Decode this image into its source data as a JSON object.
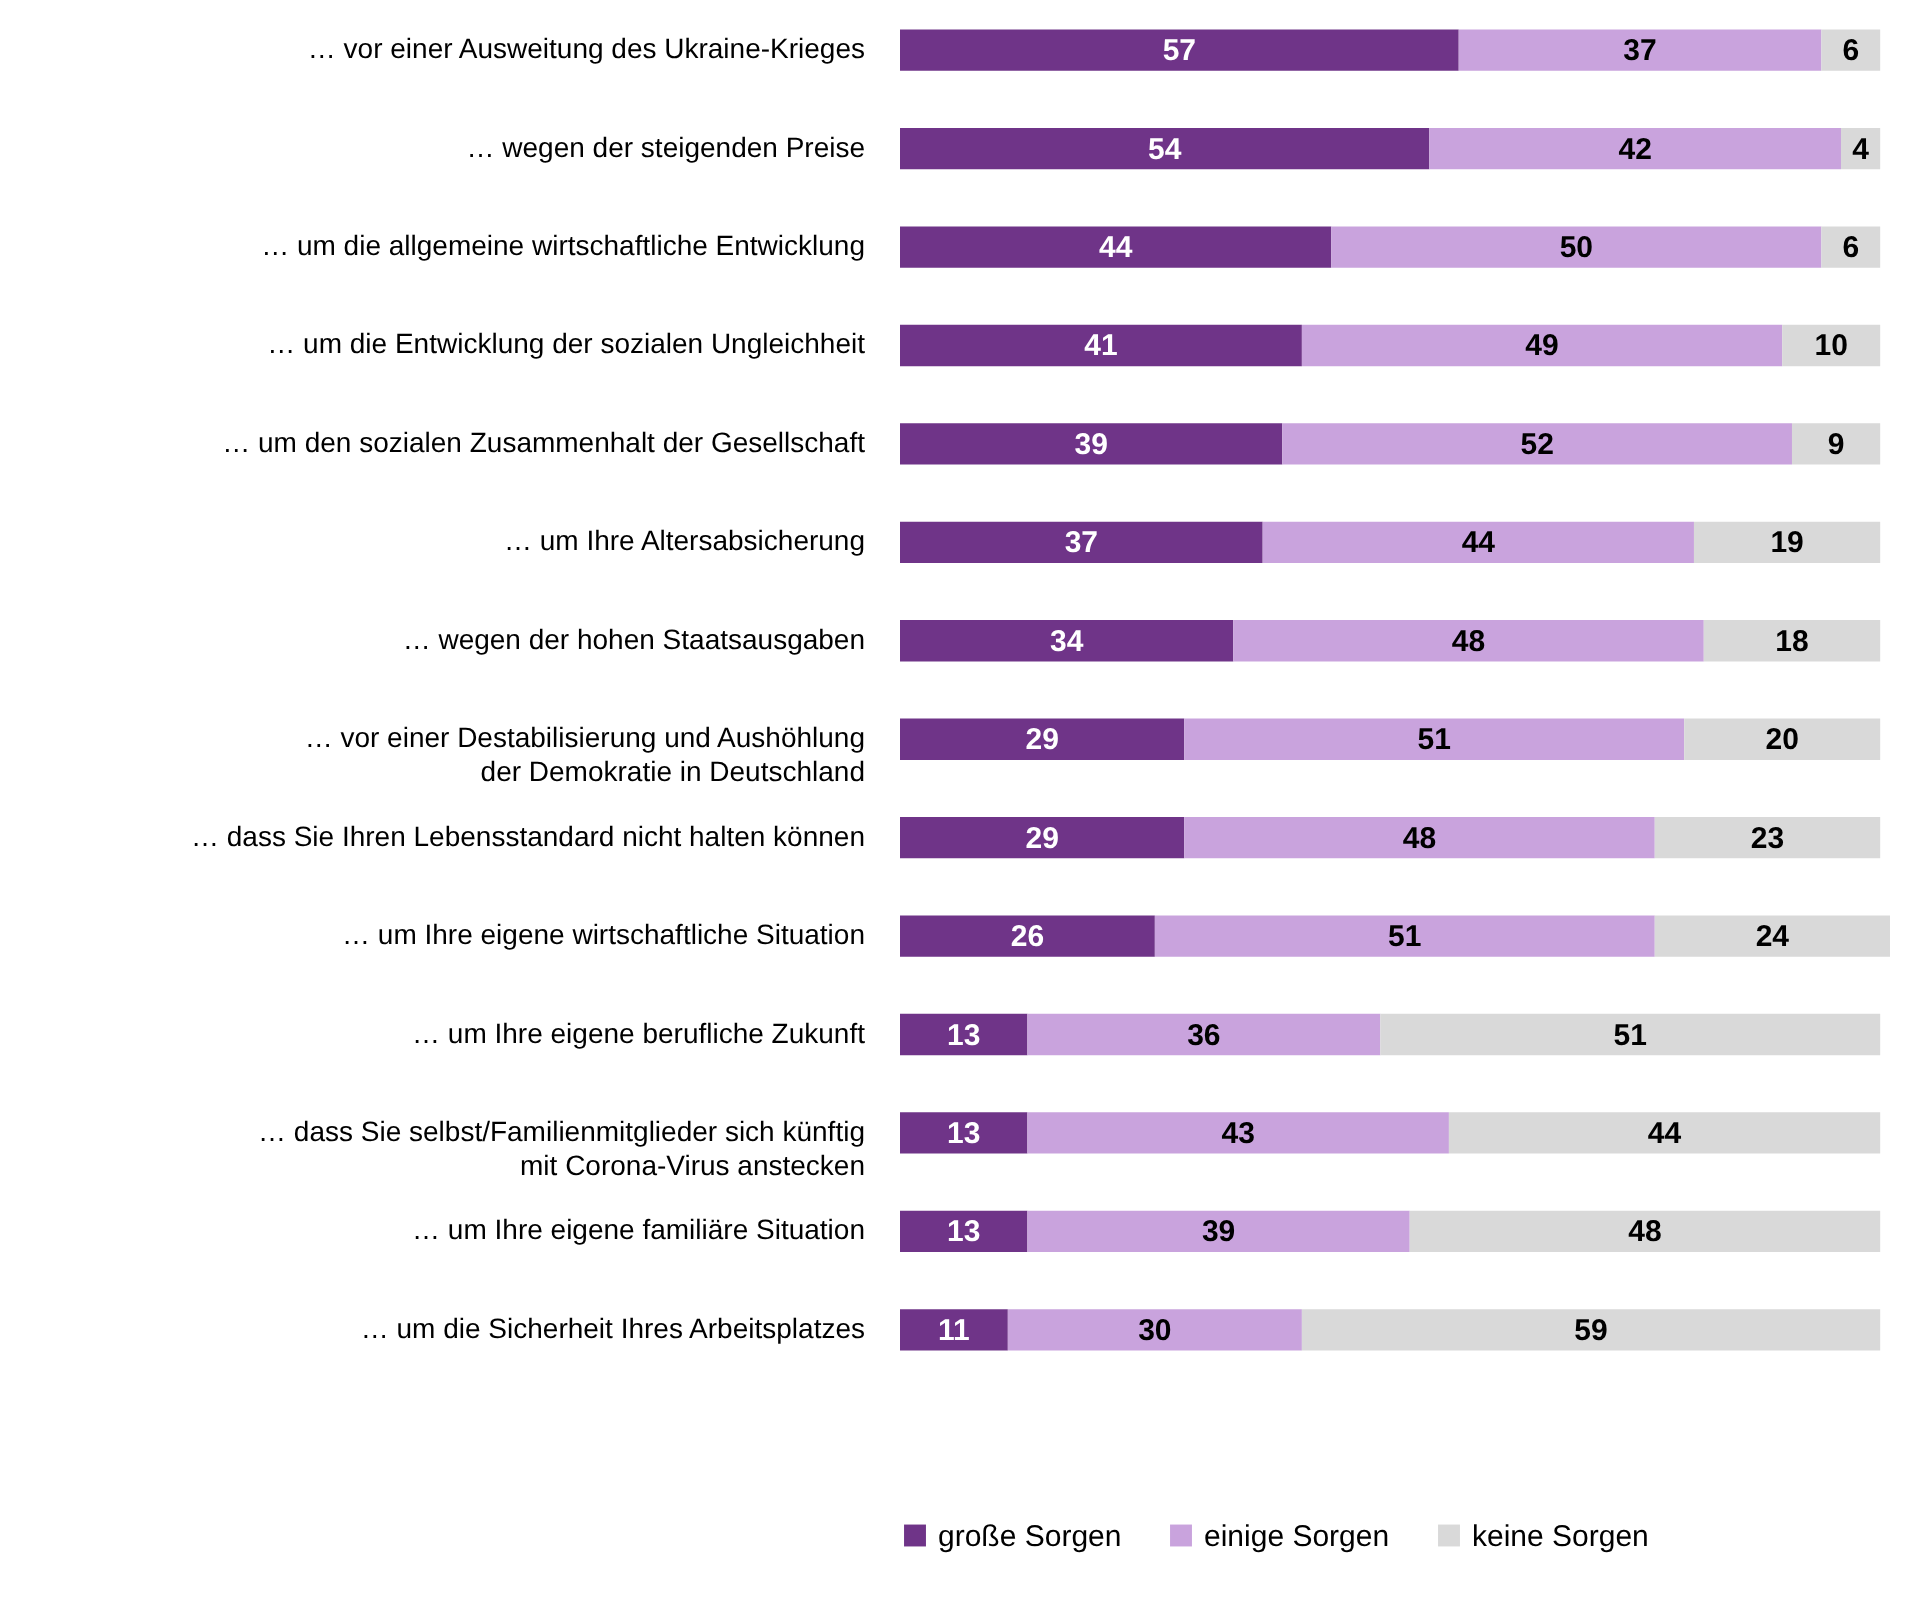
{
  "chart_data": {
    "type": "bar",
    "orientation": "horizontal",
    "stacked": true,
    "data_labels": true,
    "legend": "bottom",
    "grid": false,
    "categories": [
      "… vor einer Ausweitung des Ukraine-Krieges",
      "… wegen der steigenden Preise",
      "… um die allgemeine wirtschaftliche Entwicklung",
      "… um die Entwicklung der sozialen Ungleichheit",
      "… um den sozialen Zusammenhalt der Gesellschaft",
      "… um Ihre Altersabsicherung",
      "… wegen der hohen Staatsausgaben",
      "… vor einer Destabilisierung und Aushöhlung\nder Demokratie in Deutschland",
      "… dass Sie Ihren Lebensstandard nicht halten können",
      "… um Ihre eigene wirtschaftliche Situation",
      "… um Ihre eigene berufliche Zukunft",
      "… dass Sie selbst/Familienmitglieder sich künftig\nmit Corona-Virus anstecken",
      "… um Ihre eigene familiäre Situation",
      "… um die Sicherheit Ihres Arbeitsplatzes"
    ],
    "series": [
      {
        "name": "große Sorgen",
        "color": "#6f3488",
        "values": [
          57,
          54,
          44,
          41,
          39,
          37,
          34,
          29,
          29,
          26,
          13,
          13,
          13,
          11
        ]
      },
      {
        "name": "einige Sorgen",
        "color": "#c9a3dd",
        "values": [
          37,
          42,
          50,
          49,
          52,
          44,
          48,
          51,
          48,
          51,
          36,
          43,
          39,
          30
        ]
      },
      {
        "name": "keine Sorgen",
        "color": "#d9d9d9",
        "values": [
          6,
          4,
          6,
          10,
          9,
          19,
          18,
          20,
          23,
          24,
          51,
          44,
          48,
          59
        ]
      }
    ]
  }
}
